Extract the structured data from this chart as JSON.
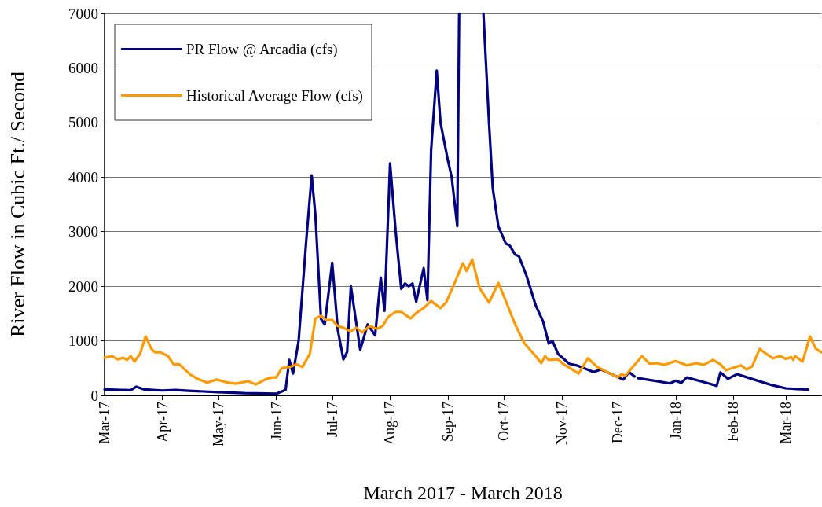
{
  "chart_data": {
    "type": "line",
    "xlabel": "March 2017 - March 2018",
    "ylabel": "River Flow in Cubic Ft./ Second",
    "xlim": [
      "2017-03-01",
      "2018-03-20"
    ],
    "xticks": [
      {
        "value": "2017-03-01",
        "label": "Mar-17"
      },
      {
        "value": "2017-04-01",
        "label": "Apr-17"
      },
      {
        "value": "2017-05-01",
        "label": "May-17"
      },
      {
        "value": "2017-06-01",
        "label": "Jun-17"
      },
      {
        "value": "2017-07-01",
        "label": "Jul-17"
      },
      {
        "value": "2017-08-01",
        "label": "Aug-17"
      },
      {
        "value": "2017-09-01",
        "label": "Sep-17"
      },
      {
        "value": "2017-10-01",
        "label": "Oct-17"
      },
      {
        "value": "2017-11-01",
        "label": "Nov-17"
      },
      {
        "value": "2017-12-01",
        "label": "Dec-17"
      },
      {
        "value": "2018-01-01",
        "label": "Jan-18"
      },
      {
        "value": "2018-02-01",
        "label": "Feb-18"
      },
      {
        "value": "2018-03-01",
        "label": "Mar-18"
      }
    ],
    "ylim": [
      0,
      7000
    ],
    "yticks": [
      0,
      1000,
      2000,
      3000,
      4000,
      5000,
      6000,
      7000
    ],
    "grid": "y",
    "legend": "top left",
    "marker": "none",
    "line_style": "solid",
    "series": [
      {
        "name": "PR Flow @ Arcadia (cfs)",
        "color": "#000080",
        "x": [
          "2017-03-01",
          "2017-03-10",
          "2017-03-15",
          "2017-03-18",
          "2017-03-22",
          "2017-04-01",
          "2017-04-08",
          "2017-04-15",
          "2017-05-01",
          "2017-05-15",
          "2017-06-01",
          "2017-06-06",
          "2017-06-08",
          "2017-06-10",
          "2017-06-13",
          "2017-06-17",
          "2017-06-20",
          "2017-06-22",
          "2017-06-25",
          "2017-06-27",
          "2017-07-01",
          "2017-07-04",
          "2017-07-07",
          "2017-07-09",
          "2017-07-11",
          "2017-07-14",
          "2017-07-16",
          "2017-07-20",
          "2017-07-24",
          "2017-07-27",
          "2017-07-29",
          "2017-08-01",
          "2017-08-04",
          "2017-08-07",
          "2017-08-09",
          "2017-08-11",
          "2017-08-13",
          "2017-08-15",
          "2017-08-19",
          "2017-08-21",
          "2017-08-23",
          "2017-08-26",
          "2017-08-28",
          "2017-09-01",
          "2017-09-03",
          "2017-09-06",
          "2017-09-07",
          "2017-09-13",
          "2017-09-20",
          "2017-09-23",
          "2017-09-25",
          "2017-09-28",
          "2017-10-02",
          "2017-10-04",
          "2017-10-07",
          "2017-10-09",
          "2017-10-13",
          "2017-10-18",
          "2017-10-22",
          "2017-10-25",
          "2017-10-27",
          "2017-10-30",
          "2017-11-05",
          "2017-11-09",
          "2017-11-18",
          "2017-11-22",
          "2017-12-04",
          "2017-12-07",
          "2017-12-10",
          "2017-12-11",
          "2017-12-12",
          "2017-12-22",
          "2017-12-29",
          "2018-01-01",
          "2018-01-04",
          "2018-01-07",
          "2018-01-19",
          "2018-01-23",
          "2018-01-25",
          "2018-01-29",
          "2018-02-03",
          "2018-02-12",
          "2018-02-22",
          "2018-03-01",
          "2018-03-13"
        ],
        "values": [
          110,
          100,
          95,
          160,
          110,
          90,
          100,
          85,
          60,
          40,
          30,
          100,
          650,
          400,
          1000,
          2800,
          4030,
          3300,
          1400,
          1300,
          2430,
          1200,
          660,
          800,
          2000,
          1300,
          835,
          1300,
          1100,
          2160,
          1550,
          4250,
          3000,
          1950,
          2050,
          2000,
          2050,
          1720,
          2330,
          1745,
          4500,
          5950,
          5000,
          4300,
          4000,
          3100,
          7000,
          null,
          7000,
          5000,
          3800,
          3100,
          2780,
          2750,
          2580,
          2550,
          2200,
          1650,
          1350,
          950,
          1000,
          760,
          580,
          550,
          430,
          475,
          290,
          430,
          345,
          null,
          315,
          260,
          220,
          270,
          230,
          330,
          215,
          175,
          420,
          305,
          390,
          290,
          185,
          130,
          105
        ]
      },
      {
        "name": "Historical Average Flow (cfs)",
        "color": "#ff9900",
        "x": [
          "2017-03-01",
          "2017-03-05",
          "2017-03-08",
          "2017-03-11",
          "2017-03-13",
          "2017-03-15",
          "2017-03-17",
          "2017-03-20",
          "2017-03-23",
          "2017-03-26",
          "2017-03-28",
          "2017-03-31",
          "2017-04-04",
          "2017-04-07",
          "2017-04-10",
          "2017-04-16",
          "2017-04-20",
          "2017-04-25",
          "2017-04-30",
          "2017-05-06",
          "2017-05-10",
          "2017-05-17",
          "2017-05-21",
          "2017-05-26",
          "2017-05-30",
          "2017-06-01",
          "2017-06-04",
          "2017-06-08",
          "2017-06-12",
          "2017-06-15",
          "2017-06-19",
          "2017-06-22",
          "2017-06-25",
          "2017-06-28",
          "2017-07-01",
          "2017-07-04",
          "2017-07-07",
          "2017-07-11",
          "2017-07-14",
          "2017-07-17",
          "2017-07-21",
          "2017-07-25",
          "2017-07-28",
          "2017-07-31",
          "2017-08-04",
          "2017-08-07",
          "2017-08-12",
          "2017-08-15",
          "2017-08-19",
          "2017-08-23",
          "2017-08-28",
          "2017-08-31",
          "2017-09-04",
          "2017-09-09",
          "2017-09-11",
          "2017-09-14",
          "2017-09-18",
          "2017-09-23",
          "2017-09-28",
          "2017-10-02",
          "2017-10-07",
          "2017-10-12",
          "2017-10-18",
          "2017-10-21",
          "2017-10-23",
          "2017-10-25",
          "2017-10-30",
          "2017-11-02",
          "2017-11-10",
          "2017-11-15",
          "2017-11-20",
          "2017-12-01",
          "2017-12-03",
          "2017-12-05",
          "2017-12-14",
          "2017-12-18",
          "2017-12-22",
          "2017-12-26",
          "2018-01-01",
          "2018-01-07",
          "2018-01-12",
          "2018-01-16",
          "2018-01-21",
          "2018-01-25",
          "2018-01-28",
          "2018-02-02",
          "2018-02-05",
          "2018-02-08",
          "2018-02-11",
          "2018-02-15",
          "2018-02-22",
          "2018-02-26",
          "2018-03-01",
          "2018-03-04",
          "2018-03-05",
          "2018-03-06",
          "2018-03-10",
          "2018-03-14",
          "2018-03-17",
          "2018-03-20"
        ],
        "values": [
          690,
          720,
          660,
          690,
          650,
          720,
          620,
          760,
          1080,
          860,
          790,
          790,
          720,
          570,
          570,
          380,
          300,
          235,
          290,
          235,
          215,
          260,
          200,
          290,
          330,
          330,
          500,
          520,
          570,
          520,
          760,
          1410,
          1460,
          1380,
          1380,
          1270,
          1240,
          1170,
          1240,
          1150,
          1270,
          1220,
          1270,
          1440,
          1530,
          1530,
          1410,
          1510,
          1600,
          1730,
          1600,
          1700,
          2010,
          2420,
          2280,
          2490,
          1960,
          1700,
          2060,
          1730,
          1300,
          950,
          720,
          590,
          720,
          650,
          660,
          570,
          400,
          680,
          520,
          330,
          390,
          360,
          720,
          580,
          590,
          560,
          630,
          550,
          590,
          560,
          650,
          570,
          460,
          520,
          550,
          475,
          530,
          850,
          680,
          720,
          670,
          700,
          650,
          720,
          620,
          1080,
          860,
          790
        ]
      }
    ]
  }
}
